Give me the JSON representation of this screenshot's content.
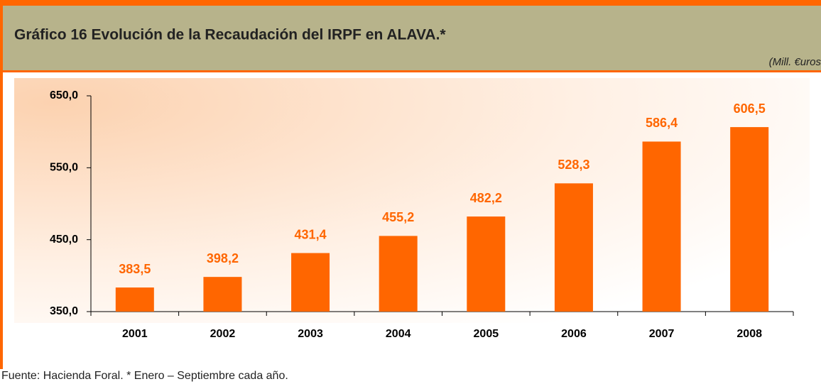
{
  "chart_data": {
    "type": "bar",
    "title": "Gráfico 16  Evolución de la Recaudación del IRPF en ALAVA.*",
    "unit_note": "(Mill. €uros",
    "source": "Fuente: Hacienda Foral. * Enero – Septiembre cada año.",
    "categories": [
      "2001",
      "2002",
      "2003",
      "2004",
      "2005",
      "2006",
      "2007",
      "2008"
    ],
    "values": [
      383.5,
      398.2,
      431.4,
      455.2,
      482.2,
      528.3,
      586.4,
      606.5
    ],
    "value_labels": [
      "383,5",
      "398,2",
      "431,4",
      "455,2",
      "482,2",
      "528,3",
      "586,4",
      "606,5"
    ],
    "color": "#ff6600",
    "ylim": [
      350,
      650
    ],
    "yticks": [
      {
        "value": 350,
        "label": "350,0"
      },
      {
        "value": 450,
        "label": "450,0"
      },
      {
        "value": 550,
        "label": "550,0"
      },
      {
        "value": 650,
        "label": "650,0"
      }
    ],
    "grid": false
  }
}
